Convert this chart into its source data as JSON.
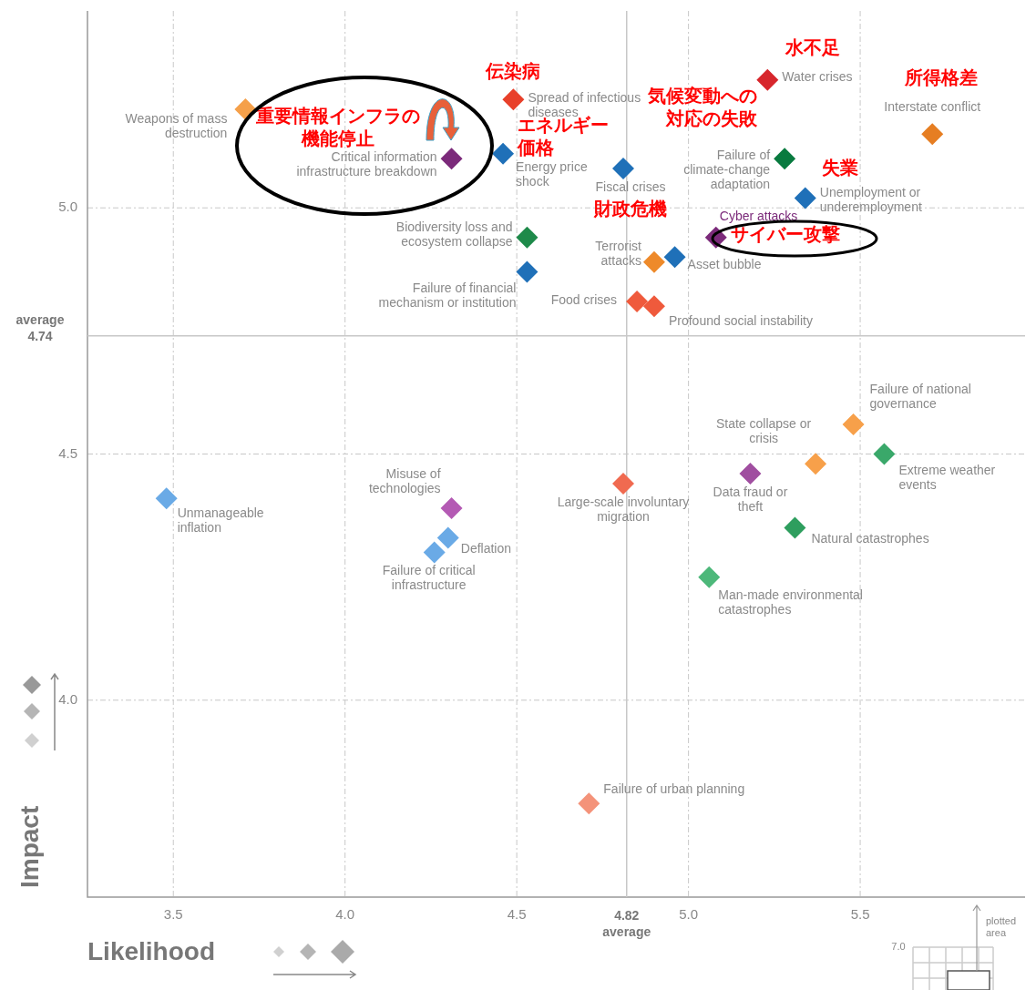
{
  "chart_data": {
    "type": "scatter",
    "xlabel": "Likelihood",
    "ylabel": "Impact",
    "xlim": [
      3.25,
      5.98
    ],
    "ylim": [
      3.6,
      5.4
    ],
    "xticks": [
      3.5,
      {
        "value": 4,
        "label": "4.0"
      },
      4.5,
      {
        "value": 5,
        "label": "5.0"
      },
      5.5
    ],
    "yticks": [
      {
        "value": 4,
        "label": "4.0"
      },
      4.5,
      {
        "value": 5,
        "label": "5.0"
      }
    ],
    "grid": true,
    "legend": false,
    "marker": "diamond",
    "ref_lines": [
      {
        "axis": "x",
        "value": 4.82,
        "label": "4.82 average",
        "color": "#c8c8c8"
      },
      {
        "axis": "y",
        "value": 4.74,
        "label": "average 4.74",
        "color": "#c8c8c8"
      }
    ],
    "series": [
      {
        "name": "Weapons of mass destruction",
        "color": "#f5a04a",
        "x": [
          3.71
        ],
        "values": [
          5.2
        ]
      },
      {
        "name": "Spread of infectious diseases",
        "color": "#e8402a",
        "x": [
          4.49
        ],
        "values": [
          5.22
        ]
      },
      {
        "name": "Water crises",
        "color": "#d7262c",
        "x": [
          5.23
        ],
        "values": [
          5.26
        ]
      },
      {
        "name": "Interstate conflict",
        "color": "#e67e22",
        "x": [
          5.71
        ],
        "values": [
          5.15
        ]
      },
      {
        "name": "Failure of climate-change adaptation",
        "color": "#087a3f",
        "x": [
          5.28
        ],
        "values": [
          5.1
        ]
      },
      {
        "name": "Critical information infrastructure breakdown",
        "color": "#7b2a7a",
        "x": [
          4.31
        ],
        "values": [
          5.1
        ]
      },
      {
        "name": "Energy price shock",
        "color": "#1f70b8",
        "x": [
          4.46
        ],
        "values": [
          5.11
        ]
      },
      {
        "name": "Fiscal crises",
        "color": "#1f70b8",
        "x": [
          4.81
        ],
        "values": [
          5.08
        ]
      },
      {
        "name": "Unemployment or underemployment",
        "color": "#1f70b8",
        "x": [
          5.34
        ],
        "values": [
          5.02
        ]
      },
      {
        "name": "Biodiversity loss and ecosystem collapse",
        "color": "#1e8a4a",
        "x": [
          4.53
        ],
        "values": [
          4.94
        ]
      },
      {
        "name": "Cyber attacks",
        "color": "#7b2a7a",
        "x": [
          5.08
        ],
        "values": [
          4.94
        ]
      },
      {
        "name": "Asset bubble",
        "color": "#1f70b8",
        "x": [
          4.96
        ],
        "values": [
          4.9
        ]
      },
      {
        "name": "Terrorist attacks",
        "color": "#ee8a2a",
        "x": [
          4.9
        ],
        "values": [
          4.89
        ]
      },
      {
        "name": "Failure of financial mechanism or institution",
        "color": "#1f70b8",
        "x": [
          4.53
        ],
        "values": [
          4.87
        ]
      },
      {
        "name": "Food crises",
        "color": "#ef5a3c",
        "x": [
          4.85
        ],
        "values": [
          4.81
        ]
      },
      {
        "name": "Profound social instability",
        "color": "#ef5a3c",
        "x": [
          4.9
        ],
        "values": [
          4.8
        ]
      },
      {
        "name": "Failure of national governance",
        "color": "#f7a04a",
        "x": [
          5.48
        ],
        "values": [
          4.56
        ]
      },
      {
        "name": "State collapse or crisis",
        "color": "#f7a04a",
        "x": [
          5.37
        ],
        "values": [
          4.48
        ]
      },
      {
        "name": "Extreme weather events",
        "color": "#3aa86a",
        "x": [
          5.57
        ],
        "values": [
          4.5
        ]
      },
      {
        "name": "Data fraud or theft",
        "color": "#a04ea0",
        "x": [
          5.18
        ],
        "values": [
          4.46
        ]
      },
      {
        "name": "Large-scale involuntary migration",
        "color": "#f06a50",
        "x": [
          4.81
        ],
        "values": [
          4.44
        ]
      },
      {
        "name": "Unmanageable inflation",
        "color": "#6aaae6",
        "x": [
          3.48
        ],
        "values": [
          4.41
        ]
      },
      {
        "name": "Misuse of technologies",
        "color": "#b45ab4",
        "x": [
          4.31
        ],
        "values": [
          4.39
        ]
      },
      {
        "name": "Natural catastrophes",
        "color": "#2e9e5e",
        "x": [
          5.31
        ],
        "values": [
          4.35
        ]
      },
      {
        "name": "Deflation",
        "color": "#6aaae6",
        "x": [
          4.3
        ],
        "values": [
          4.33
        ]
      },
      {
        "name": "Failure of critical infrastructure",
        "color": "#6aaae6",
        "x": [
          4.26
        ],
        "values": [
          4.3
        ]
      },
      {
        "name": "Man-made environmental catastrophes",
        "color": "#4db87a",
        "x": [
          5.06
        ],
        "values": [
          4.25
        ]
      },
      {
        "name": "Failure of urban planning",
        "color": "#f4937a",
        "x": [
          4.71
        ],
        "values": [
          3.79
        ]
      }
    ],
    "annotations": [
      {
        "text": "伝染病",
        "x": 4.49,
        "y": 5.22
      },
      {
        "text": "水不足",
        "x": 5.23,
        "y": 5.26
      },
      {
        "text": "所得格差",
        "x": 5.71,
        "y": 5.15
      },
      {
        "text": "気候変動への対応の失敗",
        "x": 5.28,
        "y": 5.1
      },
      {
        "text": "重要情報インフラの機能停止",
        "x": 4.31,
        "y": 5.1
      },
      {
        "text": "エネルギー価格",
        "x": 4.46,
        "y": 5.11
      },
      {
        "text": "財政危機",
        "x": 4.81,
        "y": 5.08
      },
      {
        "text": "失業",
        "x": 5.34,
        "y": 5.02
      },
      {
        "text": "サイバー攻撃",
        "x": 5.08,
        "y": 4.94
      },
      "plotted area",
      "7.0"
    ]
  }
}
